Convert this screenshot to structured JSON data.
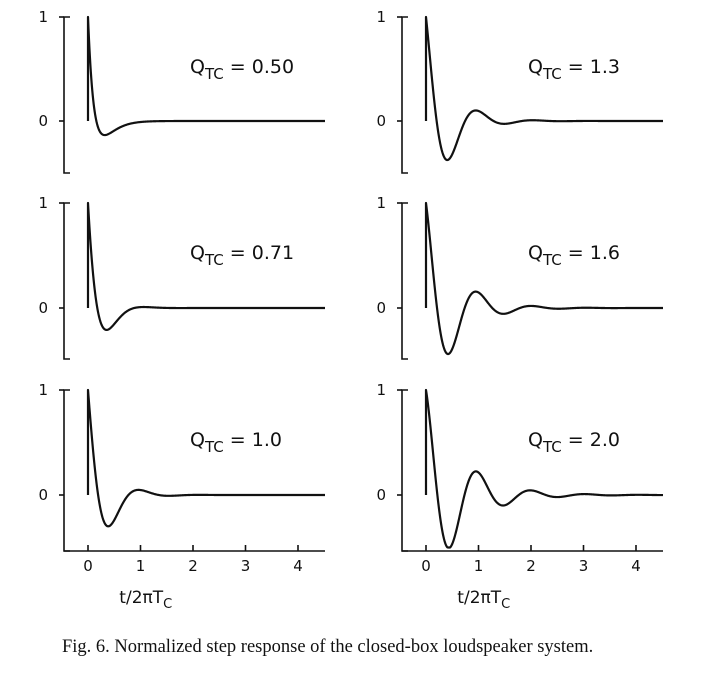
{
  "chart_data": [
    {
      "type": "line",
      "panel": "left-top",
      "label_main": "Q",
      "label_sub": "TC",
      "label_value": "0.50",
      "q": 0.5,
      "xlim": [
        -0.5,
        4.5
      ],
      "ylim": [
        -0.5,
        1.0
      ],
      "yticks": [
        {
          "value": 1,
          "label": "1"
        },
        {
          "value": 0,
          "label": "0"
        }
      ],
      "xticks": [],
      "xlabel": ""
    },
    {
      "type": "line",
      "panel": "right-top",
      "label_main": "Q",
      "label_sub": "TC",
      "label_value": "1.3",
      "q": 1.3,
      "xlim": [
        -0.5,
        4.5
      ],
      "ylim": [
        -0.5,
        1.0
      ],
      "yticks": [
        {
          "value": 1,
          "label": "1"
        },
        {
          "value": 0,
          "label": "0"
        }
      ],
      "xticks": [],
      "xlabel": ""
    },
    {
      "type": "line",
      "panel": "left-middle",
      "label_main": "Q",
      "label_sub": "TC",
      "label_value": "0.71",
      "q": 0.71,
      "xlim": [
        -0.5,
        4.5
      ],
      "ylim": [
        -0.5,
        1.0
      ],
      "yticks": [
        {
          "value": 1,
          "label": "1"
        },
        {
          "value": 0,
          "label": "0"
        }
      ],
      "xticks": [],
      "xlabel": ""
    },
    {
      "type": "line",
      "panel": "right-middle",
      "label_main": "Q",
      "label_sub": "TC",
      "label_value": "1.6",
      "q": 1.6,
      "xlim": [
        -0.5,
        4.5
      ],
      "ylim": [
        -0.5,
        1.0
      ],
      "yticks": [
        {
          "value": 1,
          "label": "1"
        },
        {
          "value": 0,
          "label": "0"
        }
      ],
      "xticks": [],
      "xlabel": ""
    },
    {
      "type": "line",
      "panel": "left-bottom",
      "label_main": "Q",
      "label_sub": "TC",
      "label_value": "1.0",
      "q": 1.0,
      "xlim": [
        -0.5,
        4.5
      ],
      "ylim": [
        -0.5,
        1.0
      ],
      "yticks": [
        {
          "value": 1,
          "label": "1"
        },
        {
          "value": 0,
          "label": "0"
        }
      ],
      "xticks": [
        {
          "value": 0,
          "label": "0"
        },
        {
          "value": 1,
          "label": "1"
        },
        {
          "value": 2,
          "label": "2"
        },
        {
          "value": 3,
          "label": "3"
        },
        {
          "value": 4,
          "label": "4"
        }
      ],
      "xlabel": "t/2πT",
      "xlabel_sub": "C"
    },
    {
      "type": "line",
      "panel": "right-bottom",
      "label_main": "Q",
      "label_sub": "TC",
      "label_value": "2.0",
      "q": 2.0,
      "xlim": [
        -0.5,
        4.5
      ],
      "ylim": [
        -0.5,
        1.0
      ],
      "yticks": [
        {
          "value": 1,
          "label": "1"
        },
        {
          "value": 0,
          "label": "0"
        }
      ],
      "xticks": [
        {
          "value": 0,
          "label": "0"
        },
        {
          "value": 1,
          "label": "1"
        },
        {
          "value": 2,
          "label": "2"
        },
        {
          "value": 3,
          "label": "3"
        },
        {
          "value": 4,
          "label": "4"
        }
      ],
      "xlabel": "t/2πT",
      "xlabel_sub": "C"
    }
  ],
  "caption": {
    "text": "Fig. 6. Normalized step response of the closed-box loudspeaker system."
  }
}
